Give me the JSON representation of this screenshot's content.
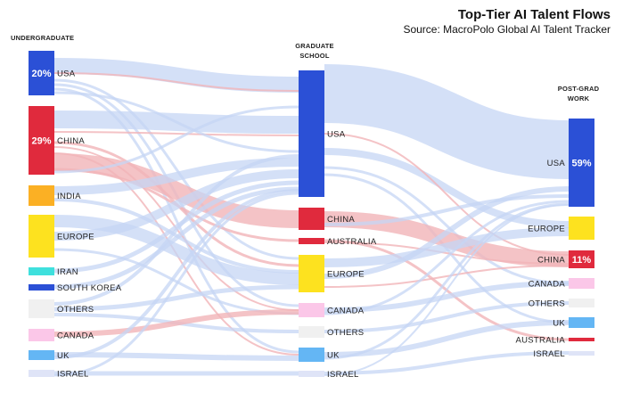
{
  "chart_data": {
    "type": "sankey",
    "title": "Top-Tier AI Talent Flows",
    "subtitle": "Source: MacroPolo Global AI Talent Tracker",
    "columns": [
      {
        "key": "ug",
        "label": "UNDERGRADUATE"
      },
      {
        "key": "gs",
        "label_lines": [
          "GRADUATE",
          "SCHOOL"
        ]
      },
      {
        "key": "pg",
        "label_lines": [
          "POST-GRAD",
          "WORK"
        ]
      }
    ],
    "undergraduate": [
      {
        "name": "USA",
        "pct_label": "20%",
        "color": "#2b50d6"
      },
      {
        "name": "CHINA",
        "pct_label": "29%",
        "color": "#e02a3d"
      },
      {
        "name": "INDIA",
        "color": "#fbb024"
      },
      {
        "name": "EUROPE",
        "color": "#fde21f"
      },
      {
        "name": "IRAN",
        "color": "#3fe0dd"
      },
      {
        "name": "SOUTH KOREA",
        "color": "#2b50d6"
      },
      {
        "name": "OTHERS",
        "color": "#f2f2f2"
      },
      {
        "name": "CANADA",
        "color": "#fbc7e8"
      },
      {
        "name": "UK",
        "color": "#64b6f4"
      },
      {
        "name": "ISRAEL",
        "color": "#dfe4f7"
      }
    ],
    "graduate_school": [
      {
        "name": "USA",
        "color": "#2b50d6"
      },
      {
        "name": "CHINA",
        "color": "#e02a3d"
      },
      {
        "name": "AUSTRALIA",
        "color": "#e02a3d"
      },
      {
        "name": "EUROPE",
        "color": "#fde21f"
      },
      {
        "name": "CANADA",
        "color": "#fbc7e8"
      },
      {
        "name": "OTHERS",
        "color": "#f2f2f2"
      },
      {
        "name": "UK",
        "color": "#64b6f4"
      },
      {
        "name": "ISRAEL",
        "color": "#dfe4f7"
      }
    ],
    "post_grad_work": [
      {
        "name": "USA",
        "pct_label": "59%",
        "color": "#2b50d6"
      },
      {
        "name": "EUROPE",
        "color": "#fde21f"
      },
      {
        "name": "CHINA",
        "pct_label": "11%",
        "color": "#e02a3d"
      },
      {
        "name": "CANADA",
        "color": "#fbc7e8"
      },
      {
        "name": "OTHERS",
        "color": "#f2f2f2"
      },
      {
        "name": "UK",
        "color": "#64b6f4"
      },
      {
        "name": "AUSTRALIA",
        "color": "#e02a3d"
      },
      {
        "name": "ISRAEL",
        "color": "#dfe4f7"
      }
    ],
    "flow_colors": {
      "default": "#c6d6f4",
      "china": "#f1b4b8"
    }
  }
}
